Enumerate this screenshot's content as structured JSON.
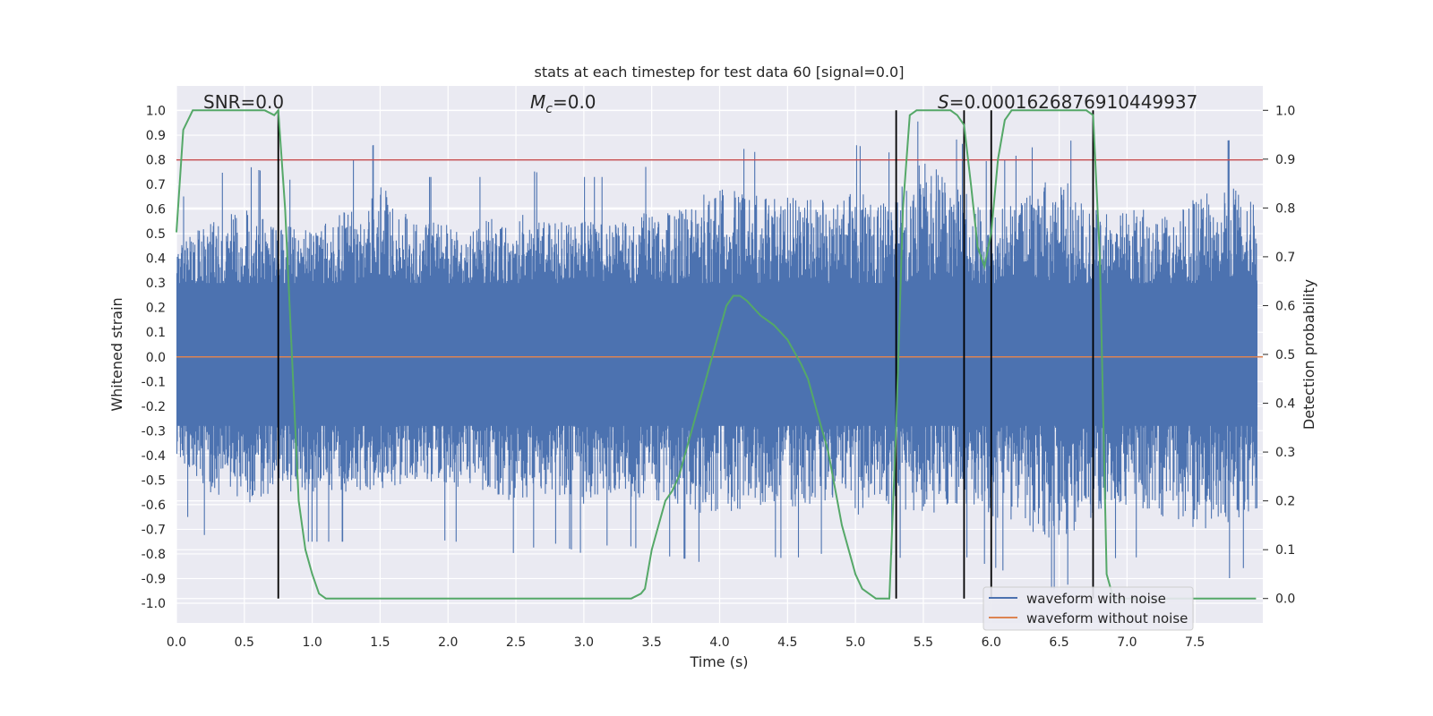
{
  "chart_data": {
    "type": "line",
    "title": "stats at each timestep for test data 60 [signal=0.0]",
    "xlabel": "Time (s)",
    "ylabel": "Whitened strain",
    "ylabel_right": "Detection probability",
    "xlim": [
      0.0,
      8.0
    ],
    "ylim": [
      -1.08,
      1.1
    ],
    "ylim_right": [
      -0.05,
      1.05
    ],
    "x_ticks": [
      "0.0",
      "0.5",
      "1.0",
      "1.5",
      "2.0",
      "2.5",
      "3.0",
      "3.5",
      "4.0",
      "4.5",
      "5.0",
      "5.5",
      "6.0",
      "6.5",
      "7.0",
      "7.5"
    ],
    "y_ticks": [
      "1.0",
      "0.9",
      "0.8",
      "0.7",
      "0.6",
      "0.5",
      "0.4",
      "0.3",
      "0.2",
      "0.1",
      "0.0",
      "-0.1",
      "-0.2",
      "-0.3",
      "-0.4",
      "-0.5",
      "-0.6",
      "-0.7",
      "-0.8",
      "-0.9",
      "-1.0"
    ],
    "y_ticks_right": [
      "1.0",
      "0.9",
      "0.8",
      "0.7",
      "0.6",
      "0.5",
      "0.4",
      "0.3",
      "0.2",
      "0.1",
      "0.0"
    ],
    "annotations": {
      "snr": "SNR=0.0",
      "mc_symbol": "M",
      "mc_sub": "c",
      "mc_value": "=0.0",
      "s_symbol": "S",
      "s_value": "=0.0001626876910449937"
    },
    "threshold": 0.8,
    "noise_envelope": {
      "x": [
        0.0,
        0.25,
        0.5,
        0.75,
        1.0,
        1.25,
        1.5,
        1.75,
        2.0,
        2.25,
        2.5,
        2.75,
        3.0,
        3.25,
        3.5,
        3.75,
        4.0,
        4.25,
        4.5,
        4.75,
        5.0,
        5.25,
        5.5,
        5.75,
        6.0,
        6.25,
        6.5,
        6.75,
        7.0,
        7.25,
        7.5,
        7.75,
        8.0
      ],
      "upper": [
        0.45,
        0.55,
        0.6,
        0.55,
        0.52,
        0.6,
        0.7,
        0.55,
        0.55,
        0.55,
        0.6,
        0.55,
        0.55,
        0.55,
        0.6,
        0.62,
        0.7,
        0.65,
        0.7,
        0.65,
        0.68,
        0.65,
        0.8,
        0.7,
        0.6,
        0.65,
        0.75,
        0.6,
        0.6,
        0.6,
        0.65,
        0.7,
        0.6
      ],
      "lower": [
        -0.4,
        -0.55,
        -0.6,
        -0.55,
        -0.55,
        -0.55,
        -0.55,
        -0.5,
        -0.55,
        -0.55,
        -0.6,
        -0.55,
        -0.6,
        -0.55,
        -0.6,
        -0.62,
        -0.65,
        -0.6,
        -0.62,
        -0.6,
        -0.65,
        -0.6,
        -0.65,
        -0.6,
        -0.65,
        -0.7,
        -0.75,
        -0.65,
        -0.6,
        -0.65,
        -0.7,
        -0.7,
        -0.6
      ]
    },
    "series": [
      {
        "name": "waveform with noise",
        "color": "#4c72b0"
      },
      {
        "name": "waveform without noise",
        "color": "#dd8452",
        "values": 0.0
      },
      {
        "name": "detection probability",
        "color": "#55a868",
        "axis": "right",
        "x": [
          0.0,
          0.05,
          0.12,
          0.2,
          0.3,
          0.5,
          0.65,
          0.72,
          0.75,
          0.8,
          0.85,
          0.9,
          0.95,
          1.0,
          1.05,
          1.1,
          1.15,
          1.5,
          2.0,
          2.4,
          2.5,
          3.0,
          3.35,
          3.42,
          3.45,
          3.5,
          3.55,
          3.6,
          3.65,
          3.7,
          3.8,
          3.9,
          4.0,
          4.05,
          4.1,
          4.15,
          4.2,
          4.3,
          4.4,
          4.5,
          4.6,
          4.65,
          4.7,
          4.8,
          4.9,
          5.0,
          5.05,
          5.1,
          5.15,
          5.2,
          5.25,
          5.3,
          5.35,
          5.4,
          5.45,
          5.5,
          5.6,
          5.7,
          5.75,
          5.8,
          5.85,
          5.9,
          5.95,
          6.0,
          6.05,
          6.1,
          6.15,
          6.2,
          6.3,
          6.5,
          6.7,
          6.75,
          6.8,
          6.85,
          6.9,
          6.95,
          7.0,
          7.5,
          7.95
        ],
        "values": [
          0.75,
          0.96,
          1.0,
          1.0,
          1.0,
          1.0,
          1.0,
          0.99,
          1.0,
          0.8,
          0.5,
          0.2,
          0.1,
          0.05,
          0.01,
          0.0,
          0.0,
          0.0,
          0.0,
          0.0,
          0.0,
          0.0,
          0.0,
          0.01,
          0.02,
          0.1,
          0.15,
          0.2,
          0.22,
          0.25,
          0.35,
          0.45,
          0.55,
          0.6,
          0.62,
          0.62,
          0.61,
          0.58,
          0.56,
          0.53,
          0.48,
          0.45,
          0.4,
          0.3,
          0.15,
          0.05,
          0.02,
          0.01,
          0.0,
          0.0,
          0.0,
          0.35,
          0.8,
          0.99,
          1.0,
          1.0,
          1.0,
          1.0,
          0.99,
          0.97,
          0.85,
          0.72,
          0.68,
          0.75,
          0.9,
          0.98,
          1.0,
          1.0,
          1.0,
          1.0,
          1.0,
          0.99,
          0.7,
          0.05,
          0.0,
          0.0,
          0.0,
          0.0,
          0.0
        ]
      }
    ],
    "vertical_lines": [
      0.75,
      5.3,
      5.8,
      6.0,
      6.75
    ],
    "vertical_line_range": [
      -0.98,
      1.0
    ],
    "legend": {
      "position": "lower-right",
      "entries": [
        "waveform with noise",
        "waveform without noise"
      ]
    },
    "colors": {
      "background": "#eaeaf2",
      "grid": "#ffffff",
      "threshold": "#c44e52",
      "vline": "#000000"
    }
  }
}
